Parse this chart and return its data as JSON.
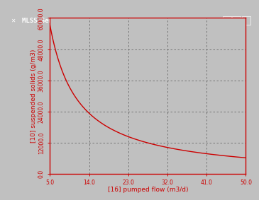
{
  "title": "MLSS Sensitivity",
  "xlabel": "[16] pumped flow (m3/d)",
  "ylabel": "[10] suspended solids (g/m3)",
  "x_min": 5.0,
  "x_max": 50.0,
  "y_min": 0.0,
  "y_max": 60000.0,
  "x_ticks": [
    5.0,
    14.0,
    23.0,
    32.0,
    41.0,
    50.0
  ],
  "y_ticks": [
    0.0,
    12000.0,
    24000.0,
    36000.0,
    48000.0,
    60000.0
  ],
  "y_tick_labels": [
    "0.0",
    "12000.0",
    "24000.0",
    "36000.0",
    "48000.0",
    "60000.0"
  ],
  "x_tick_labels": [
    "5.0",
    "14.0",
    "23.0",
    "32.0",
    "41.0",
    "50.0"
  ],
  "curve_color": "#cc0000",
  "bg_color": "#c0c0c0",
  "plot_bg_color": "#c0c0c0",
  "title_bar_color": "#000080",
  "title_text_color": "#ffffff",
  "axis_color": "#cc0000",
  "grid_color": "#696969",
  "tick_label_color": "#cc0000",
  "axis_label_color": "#cc0000",
  "curve_A": 380000.0,
  "curve_B": 1.5,
  "curve_C": -1200.0
}
